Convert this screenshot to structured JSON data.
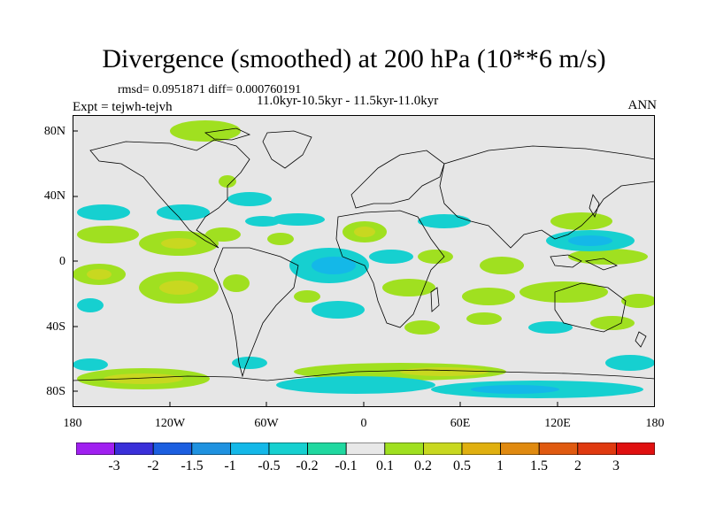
{
  "title": "Divergence (smoothed) at 200 hPa (10**6 m/s)",
  "stats": "rmsd= 0.0951871 diff= 0.000760191",
  "experiment": "Expt = tejwh-tejvh",
  "period": "11.0kyr-10.5kyr - 11.5kyr-11.0kyr",
  "season": "ANN",
  "axes": {
    "lat_labels": [
      "80N",
      "40N",
      "0",
      "40S",
      "80S"
    ],
    "lon_labels": [
      "180",
      "120W",
      "60W",
      "0",
      "60E",
      "120E",
      "180"
    ]
  },
  "colorbar": {
    "labels": [
      "-3",
      "-2",
      "-1.5",
      "-1",
      "-0.5",
      "-0.2",
      "-0.1",
      "0.1",
      "0.2",
      "0.5",
      "1",
      "1.5",
      "2",
      "3"
    ],
    "colors": [
      "#a020f0",
      "#3a2fd9",
      "#1c5fe0",
      "#1f92e0",
      "#14b8e8",
      "#16d0d0",
      "#20d8a0",
      "#e8e8e8",
      "#a0e020",
      "#c8d820",
      "#e0b010",
      "#e08a10",
      "#e05a10",
      "#e03a10",
      "#e01010"
    ]
  },
  "colors": {
    "ocean_land_bg": "#e6e6e6",
    "coast": "#000000"
  }
}
